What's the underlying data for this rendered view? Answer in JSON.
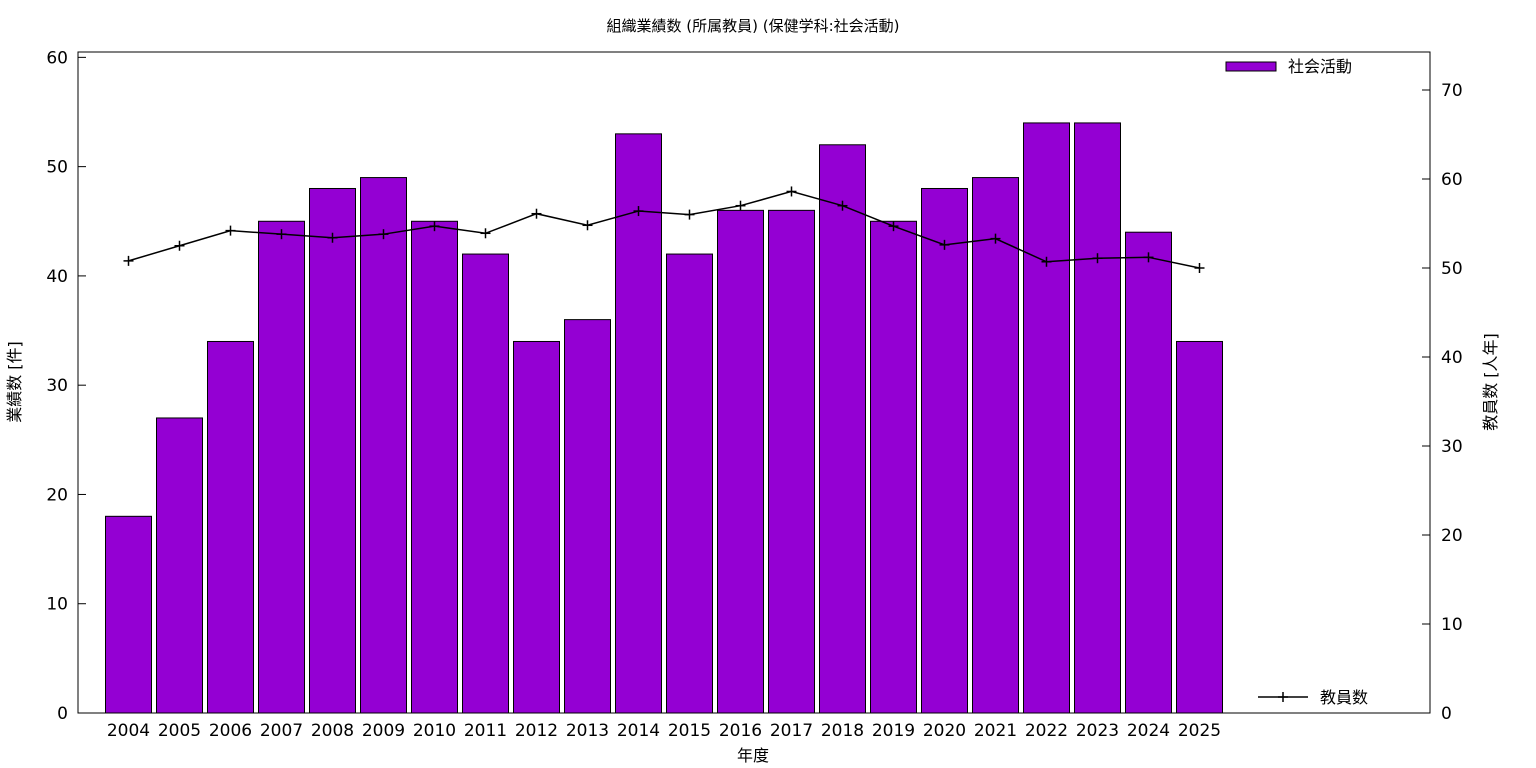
{
  "chart_data": {
    "type": "bar",
    "title": "組織業績数 (所属教員) (保健学科:社会活動)",
    "xlabel": "年度",
    "ylabel": "業績数 [件]",
    "y2label": "教員数 [人年]",
    "categories": [
      "2004",
      "2005",
      "2006",
      "2007",
      "2008",
      "2009",
      "2010",
      "2011",
      "2012",
      "2013",
      "2014",
      "2015",
      "2016",
      "2017",
      "2018",
      "2019",
      "2020",
      "2021",
      "2022",
      "2023",
      "2024",
      "2025"
    ],
    "series": [
      {
        "name": "社会活動",
        "type": "bar",
        "axis": "left",
        "color": "#9400d3",
        "values": [
          18,
          27,
          34,
          45,
          48,
          49,
          45,
          42,
          34,
          36,
          53,
          42,
          46,
          46,
          52,
          45,
          48,
          49,
          54,
          54,
          44,
          34
        ]
      },
      {
        "name": "教員数",
        "type": "line",
        "axis": "right",
        "color": "#000000",
        "marker": "plus",
        "values": [
          50.8,
          52.5,
          54.2,
          53.8,
          53.4,
          53.8,
          54.7,
          53.9,
          56.1,
          54.8,
          56.4,
          56.0,
          57.0,
          58.6,
          57.0,
          54.7,
          52.6,
          53.3,
          50.7,
          51.1,
          51.2,
          50.0
        ]
      }
    ],
    "ylim": [
      0,
      60
    ],
    "y2lim": [
      0,
      74
    ],
    "yticks": [
      0,
      10,
      20,
      30,
      40,
      50,
      60
    ],
    "y2ticks": [
      0,
      10,
      20,
      30,
      40,
      50,
      60,
      70
    ],
    "legend": [
      {
        "label": "社会活動",
        "position": "top-right"
      },
      {
        "label": "教員数",
        "position": "bottom-right"
      }
    ],
    "grid": false
  }
}
